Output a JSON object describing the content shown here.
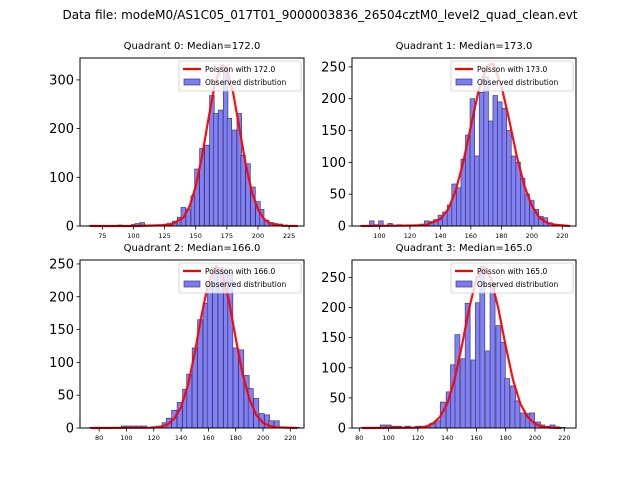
{
  "suptitle": "Data file: modeM0/AS1C05_017T01_9000003836_26504cztM0_level2_quad_clean.evt",
  "colors": {
    "bar_fill": "#7a7af2",
    "bar_edge": "#3b3b7a",
    "poisson_line": "#ff0000",
    "frame": "#000000"
  },
  "chart_data": [
    {
      "type": "bar",
      "title": "Quadrant 0: Median=172.0",
      "median": 172.0,
      "xlim": [
        57,
        237
      ],
      "ylim": [
        0,
        345
      ],
      "xticks": [
        75,
        100,
        125,
        150,
        175,
        200,
        225
      ],
      "yticks": [
        0,
        100,
        200,
        300
      ],
      "grid": false,
      "legend": {
        "position": "top-right",
        "entries": [
          "Poisson with 172.0",
          "Observed distribution"
        ]
      },
      "bin_width": 3.7,
      "histogram": {
        "bin_centers": [
          66,
          70,
          74,
          78,
          81,
          85,
          89,
          92,
          96,
          100,
          103,
          107,
          111,
          115,
          118,
          122,
          126,
          129,
          133,
          137,
          140,
          144,
          148,
          151,
          155,
          159,
          163,
          166,
          170,
          174,
          177,
          181,
          185,
          188,
          192,
          196,
          200,
          203,
          207,
          211,
          214,
          218,
          222,
          225,
          229
        ],
        "counts": [
          1,
          1,
          1,
          1,
          1,
          1,
          2,
          1,
          1,
          3,
          5,
          7,
          2,
          1,
          1,
          2,
          4,
          6,
          10,
          18,
          38,
          35,
          62,
          117,
          159,
          166,
          268,
          231,
          238,
          328,
          221,
          197,
          231,
          145,
          128,
          80,
          50,
          34,
          12,
          7,
          5,
          4,
          2,
          1,
          1
        ]
      },
      "poisson": {
        "label": "Poisson with 172.0",
        "x": [
          65,
          100,
          130,
          140,
          145,
          150,
          155,
          160,
          165,
          170,
          172,
          175,
          180,
          185,
          190,
          195,
          200,
          205,
          210,
          220,
          232
        ],
        "y": [
          0,
          0,
          2,
          17,
          40,
          81,
          143,
          217,
          286,
          326,
          330,
          321,
          274,
          202,
          129,
          71,
          34,
          14,
          5,
          0.4,
          0
        ]
      }
    },
    {
      "type": "bar",
      "title": "Quadrant 1: Median=173.0",
      "median": 173.0,
      "xlim": [
        82,
        229
      ],
      "ylim": [
        0,
        264
      ],
      "xticks": [
        100,
        120,
        140,
        160,
        180,
        200,
        220
      ],
      "yticks": [
        0,
        50,
        100,
        150,
        200,
        250
      ],
      "grid": false,
      "legend": {
        "position": "top-right",
        "entries": [
          "Poisson with 173.0",
          "Observed distribution"
        ]
      },
      "bin_width": 3.0,
      "histogram": {
        "bin_centers": [
          89,
          92,
          95,
          98,
          101,
          104,
          107,
          110,
          113,
          116,
          119,
          122,
          125,
          128,
          131,
          134,
          137,
          140,
          143,
          146,
          149,
          152,
          155,
          158,
          161,
          164,
          167,
          170,
          173,
          176,
          179,
          182,
          185,
          188,
          191,
          194,
          197,
          200,
          203,
          206,
          209,
          212,
          215,
          218,
          221,
          224
        ],
        "counts": [
          1,
          1,
          8,
          2,
          8,
          1,
          4,
          1,
          2,
          1,
          1,
          1,
          2,
          3,
          8,
          7,
          10,
          17,
          22,
          33,
          66,
          60,
          105,
          143,
          200,
          110,
          210,
          235,
          165,
          205,
          195,
          185,
          150,
          110,
          100,
          75,
          50,
          40,
          26,
          15,
          13,
          5,
          3,
          1,
          1,
          0
        ]
      },
      "poisson": {
        "label": "Poisson with 173.0",
        "x": [
          88,
          130,
          140,
          145,
          150,
          155,
          160,
          165,
          170,
          173,
          175,
          180,
          185,
          190,
          195,
          200,
          205,
          210,
          215,
          225
        ],
        "y": [
          0,
          1,
          11,
          26,
          55,
          100,
          157,
          212,
          248,
          255,
          254,
          221,
          168,
          111,
          64,
          32,
          13,
          5,
          2,
          0
        ]
      }
    },
    {
      "type": "bar",
      "title": "Quadrant 2: Median=166.0",
      "median": 166.0,
      "xlim": [
        66,
        230
      ],
      "ylim": [
        0,
        256
      ],
      "xticks": [
        80,
        100,
        120,
        140,
        160,
        180,
        200,
        220
      ],
      "yticks": [
        0,
        50,
        100,
        150,
        200,
        250
      ],
      "grid": false,
      "legend": {
        "position": "top-right",
        "entries": [
          "Poisson with 166.0",
          "Observed distribution"
        ]
      },
      "bin_width": 3.75,
      "histogram": {
        "bin_centers": [
          75,
          79,
          83,
          86,
          90,
          94,
          98,
          101,
          105,
          109,
          113,
          116,
          120,
          124,
          128,
          131,
          135,
          139,
          143,
          146,
          150,
          154,
          158,
          161,
          165,
          169,
          173,
          176,
          180,
          184,
          188,
          191,
          195,
          199,
          203,
          206,
          210,
          214,
          218,
          221,
          225
        ],
        "counts": [
          1,
          1,
          1,
          1,
          1,
          1,
          3,
          3,
          3,
          3,
          3,
          1,
          2,
          3,
          8,
          15,
          27,
          39,
          59,
          82,
          122,
          165,
          190,
          218,
          245,
          245,
          240,
          237,
          122,
          119,
          80,
          60,
          45,
          22,
          20,
          11,
          11,
          1,
          1,
          1,
          1
        ]
      },
      "poisson": {
        "label": "Poisson with 166.0",
        "x": [
          74,
          120,
          125,
          130,
          135,
          140,
          145,
          150,
          155,
          160,
          166,
          170,
          175,
          180,
          185,
          190,
          195,
          200,
          205,
          210,
          225
        ],
        "y": [
          0,
          0.4,
          2,
          5,
          14,
          32,
          65,
          114,
          172,
          222,
          247,
          235,
          194,
          137,
          83,
          44,
          20,
          8,
          3,
          1,
          0
        ]
      }
    },
    {
      "type": "bar",
      "title": "Quadrant 3: Median=165.0",
      "median": 165.0,
      "xlim": [
        75,
        228
      ],
      "ylim": [
        0,
        279
      ],
      "xticks": [
        80,
        100,
        120,
        140,
        160,
        180,
        200,
        220
      ],
      "yticks": [
        0,
        50,
        100,
        150,
        200,
        250
      ],
      "grid": false,
      "legend": {
        "position": "top-right",
        "entries": [
          "Poisson with 165.0",
          "Observed distribution"
        ]
      },
      "bin_width": 3.4,
      "histogram": {
        "bin_centers": [
          83,
          86,
          90,
          93,
          96,
          100,
          103,
          107,
          110,
          113,
          117,
          120,
          124,
          127,
          130,
          134,
          137,
          141,
          144,
          147,
          151,
          154,
          158,
          161,
          164,
          168,
          171,
          175,
          178,
          181,
          185,
          188,
          192,
          195,
          198,
          202,
          205,
          209,
          212,
          215,
          219
        ],
        "counts": [
          1,
          1,
          1,
          1,
          5,
          5,
          3,
          3,
          1,
          3,
          1,
          3,
          3,
          3,
          8,
          12,
          43,
          60,
          105,
          155,
          115,
          207,
          113,
          208,
          268,
          128,
          240,
          170,
          142,
          82,
          70,
          45,
          25,
          24,
          25,
          10,
          5,
          3,
          5,
          2,
          1
        ]
      },
      "poisson": {
        "label": "Poisson with 165.0",
        "x": [
          82,
          120,
          125,
          130,
          135,
          140,
          145,
          150,
          155,
          160,
          165,
          170,
          175,
          180,
          185,
          190,
          195,
          200,
          205,
          210,
          218
        ],
        "y": [
          0,
          0.6,
          2,
          7,
          18,
          40,
          80,
          136,
          198,
          248,
          268,
          248,
          198,
          136,
          80,
          40,
          18,
          7,
          2,
          0.6,
          0
        ]
      }
    }
  ]
}
